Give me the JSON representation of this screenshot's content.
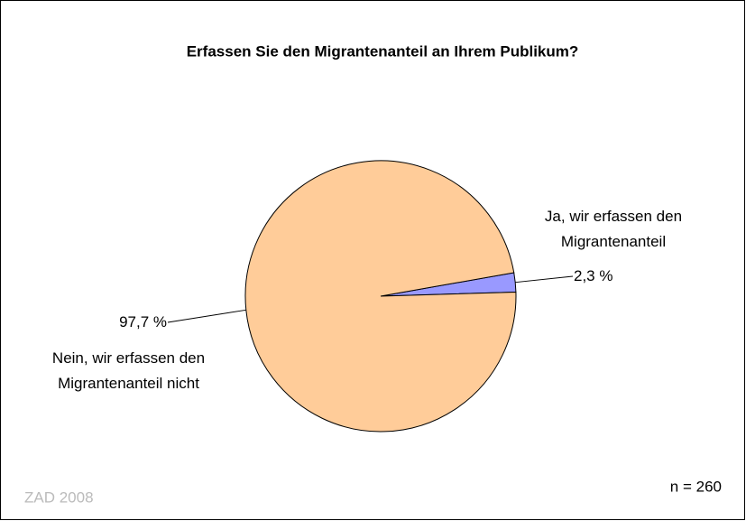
{
  "chart_data": {
    "type": "pie",
    "title": "Erfassen Sie den Migrantenanteil an Ihrem Publikum?",
    "categories": [
      "Ja, wir erfassen den Migrantenanteil",
      "Nein, wir erfassen den Migrantenanteil nicht"
    ],
    "values": [
      2.3,
      97.7
    ],
    "value_labels": [
      "2,3 %",
      "97,7 %"
    ],
    "colors": [
      "#9999ff",
      "#ffcc99"
    ],
    "annotations": [
      "ZAD 2008",
      "n = 260"
    ]
  }
}
